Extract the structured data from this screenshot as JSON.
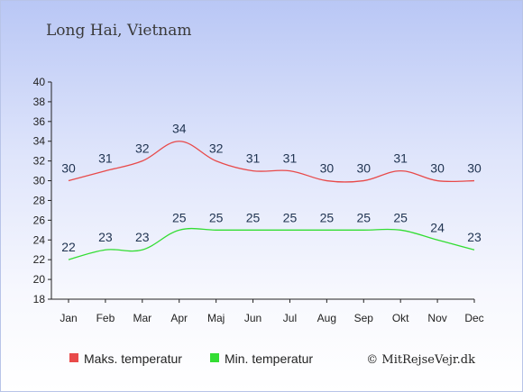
{
  "chart_data": {
    "type": "line",
    "title": "Long Hai, Vietnam",
    "categories": [
      "Jan",
      "Feb",
      "Mar",
      "Apr",
      "Maj",
      "Jun",
      "Jul",
      "Aug",
      "Sep",
      "Okt",
      "Nov",
      "Dec"
    ],
    "series": [
      {
        "name": "Maks. temperatur",
        "color": "#e84a4a",
        "values": [
          30,
          31,
          32,
          34,
          32,
          31,
          31,
          30,
          30,
          31,
          30,
          30
        ]
      },
      {
        "name": "Min. temperatur",
        "color": "#33dd33",
        "values": [
          22,
          23,
          23,
          25,
          25,
          25,
          25,
          25,
          25,
          25,
          24,
          23
        ]
      }
    ],
    "ylim": [
      18,
      40
    ],
    "yticks": [
      18,
      20,
      22,
      24,
      26,
      28,
      30,
      32,
      34,
      36,
      38,
      40
    ],
    "legend_position": "bottom",
    "grid": false
  },
  "credit": "© MitRejseVejr.dk"
}
